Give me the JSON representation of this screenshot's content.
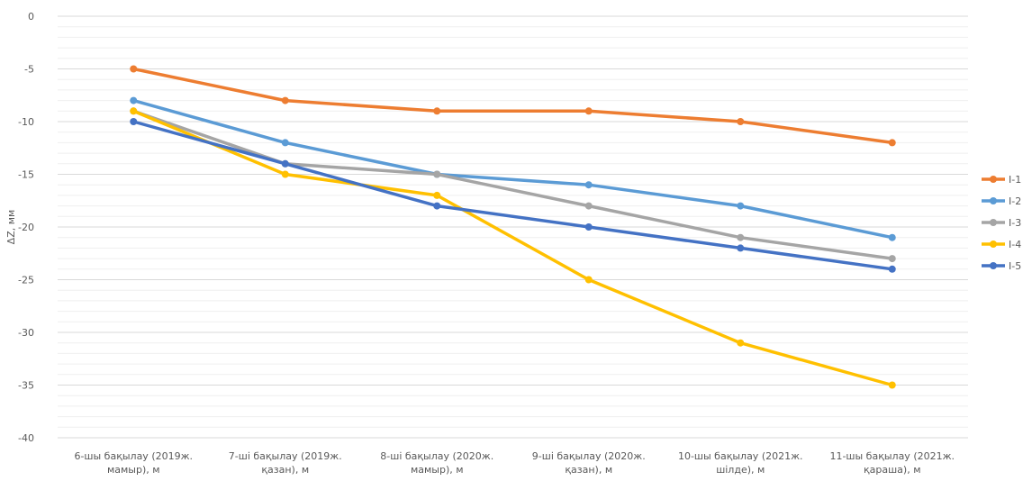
{
  "chart_data": {
    "type": "line",
    "title": "",
    "xlabel": "",
    "ylabel": "ΔZ, мм",
    "ylim": [
      -40,
      0
    ],
    "y_ticks": [
      0,
      -5,
      -10,
      -15,
      -20,
      -25,
      -30,
      -35,
      -40
    ],
    "y_tick_labels": [
      "0",
      "-5",
      "-10",
      "-15",
      "-20",
      "-25",
      "-30",
      "-35",
      "-40"
    ],
    "grid": "horizontal, major and minor",
    "legend_position": "right",
    "categories": [
      [
        "6-шы бақылау (2019ж.",
        "мамыр), м"
      ],
      [
        "7-ші бақылау (2019ж.",
        "қазан), м"
      ],
      [
        "8-ші бақылау (2020ж.",
        "мамыр), м"
      ],
      [
        "9-ші бақылау (2020ж.",
        "қазан), м"
      ],
      [
        "10-шы бақылау (2021ж.",
        "шілде), м"
      ],
      [
        "11-шы бақылау (2021ж.",
        "қараша), м"
      ]
    ],
    "series": [
      {
        "name": "I-1",
        "color": "#ED7D31",
        "values": [
          -5,
          -8,
          -9,
          -9,
          -10,
          -12
        ]
      },
      {
        "name": "I-2",
        "color": "#5B9BD5",
        "values": [
          -8,
          -12,
          -15,
          -16,
          -18,
          -21
        ]
      },
      {
        "name": "I-3",
        "color": "#A5A5A5",
        "values": [
          -9,
          -14,
          -15,
          -18,
          -21,
          -23
        ]
      },
      {
        "name": "I-4",
        "color": "#FFC000",
        "values": [
          -9,
          -15,
          -17,
          -25,
          -31,
          -35
        ]
      },
      {
        "name": "I-5",
        "color": "#4472C4",
        "values": [
          -10,
          -14,
          -18,
          -20,
          -22,
          -24
        ]
      }
    ]
  }
}
